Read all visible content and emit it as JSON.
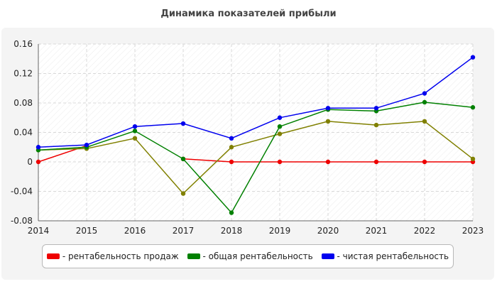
{
  "chart_data": {
    "type": "line",
    "title": "Динамика показателей прибыли",
    "xlabel": "",
    "ylabel": "",
    "x": [
      "2014",
      "2015",
      "2016",
      "2017",
      "2018",
      "2019",
      "2020",
      "2021",
      "2022",
      "2023"
    ],
    "ylim": [
      -0.08,
      0.16
    ],
    "yticks": [
      "0.16",
      "0.12",
      "0.08",
      "0.04",
      "0",
      "-0.04",
      "-0.08"
    ],
    "yticks_values": [
      0.16,
      0.12,
      0.08,
      0.04,
      0,
      -0.04,
      -0.08
    ],
    "grid": true,
    "legend_position": "bottom",
    "series": [
      {
        "name": "рентабельность продаж",
        "color": "#ee0000",
        "legend_label": "- рентабельность продаж",
        "values": [
          0.0,
          0.022,
          null,
          0.004,
          0.0,
          0.0,
          0.0,
          0.0,
          0.0,
          0.0
        ]
      },
      {
        "name": "",
        "color": "#808000",
        "legend_label": "",
        "values": [
          0.016,
          0.018,
          0.032,
          -0.043,
          0.02,
          0.038,
          0.055,
          0.05,
          0.055,
          0.004
        ]
      },
      {
        "name": "общая рентабельность",
        "color": "#008000",
        "legend_label": "- общая рентабельность",
        "values": [
          0.016,
          0.02,
          0.042,
          0.004,
          -0.069,
          0.048,
          0.071,
          0.069,
          0.081,
          0.074
        ]
      },
      {
        "name": "чистая рентабельность",
        "color": "#0000ee",
        "legend_label": "- чистая рентабельность",
        "values": [
          0.02,
          0.023,
          0.048,
          0.052,
          0.032,
          0.06,
          0.073,
          0.073,
          0.093,
          0.142
        ]
      }
    ],
    "legend": [
      {
        "label": "- рентабельность продаж",
        "color": "#ee0000"
      },
      {
        "label": "- общая рентабельность",
        "color": "#008000"
      },
      {
        "label": "- чистая рентабельность",
        "color": "#0000ee"
      }
    ]
  }
}
